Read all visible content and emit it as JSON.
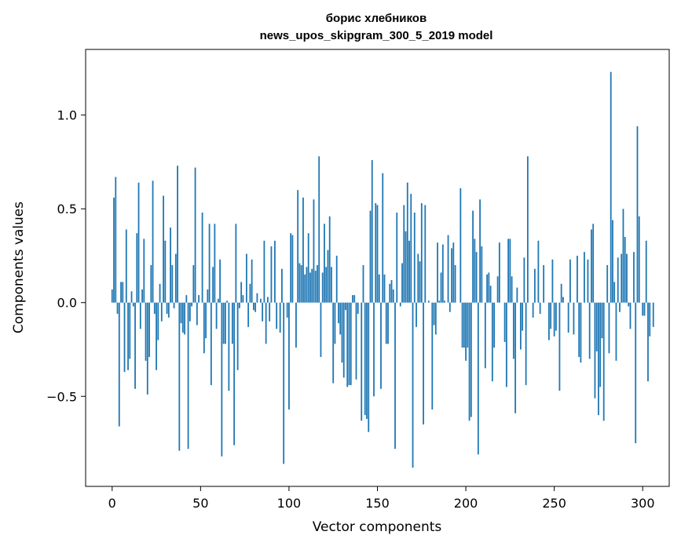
{
  "chart_data": {
    "type": "bar",
    "title": "борис хлебников",
    "subtitle": "news_upos_skipgram_300_5_2019 model",
    "xlabel": "Vector components",
    "ylabel": "Components values",
    "xlim": [
      -15,
      315
    ],
    "ylim": [
      -0.98,
      1.35
    ],
    "x_ticks": [
      0,
      50,
      100,
      150,
      200,
      250,
      300
    ],
    "y_ticks": [
      -0.5,
      0.0,
      0.5,
      1.0
    ],
    "y_tick_labels": [
      "−0.5",
      "0.0",
      "0.5",
      "1.0"
    ],
    "bar_color": "#1f77b4",
    "grid": false,
    "legend": "none",
    "values": [
      0.07,
      0.56,
      0.67,
      -0.06,
      -0.66,
      0.11,
      0.11,
      -0.37,
      0.39,
      -0.36,
      -0.3,
      0.06,
      -0.02,
      -0.46,
      0.37,
      0.64,
      -0.14,
      0.07,
      0.34,
      -0.31,
      -0.49,
      -0.29,
      0.2,
      0.65,
      -0.06,
      -0.36,
      -0.2,
      0.1,
      -0.1,
      0.57,
      0.33,
      -0.06,
      -0.08,
      0.4,
      0.2,
      -0.03,
      0.26,
      0.73,
      -0.79,
      -0.11,
      -0.16,
      -0.17,
      0.04,
      -0.78,
      -0.1,
      -0.02,
      0.2,
      0.72,
      -0.12,
      0.04,
      0.0,
      0.48,
      -0.27,
      -0.19,
      0.07,
      0.42,
      -0.44,
      0.19,
      0.42,
      -0.14,
      0.02,
      0.23,
      -0.82,
      -0.22,
      -0.22,
      0.01,
      -0.47,
      0.0,
      -0.22,
      -0.76,
      0.42,
      -0.36,
      -0.03,
      0.11,
      0.04,
      0.0,
      0.26,
      -0.13,
      0.1,
      0.23,
      -0.04,
      -0.05,
      0.05,
      0.0,
      0.02,
      -0.1,
      0.33,
      -0.22,
      0.03,
      -0.1,
      0.3,
      0.0,
      0.33,
      -0.14,
      0.0,
      -0.16,
      0.18,
      -0.86,
      0.0,
      -0.08,
      -0.57,
      0.37,
      0.36,
      0.0,
      -0.24,
      0.6,
      0.21,
      0.2,
      0.56,
      0.15,
      0.19,
      0.37,
      0.16,
      0.18,
      0.55,
      0.17,
      0.2,
      0.78,
      -0.29,
      0.16,
      0.42,
      0.19,
      0.28,
      0.46,
      0.19,
      -0.43,
      -0.22,
      0.25,
      -0.11,
      -0.17,
      -0.32,
      -0.4,
      -0.04,
      -0.45,
      -0.44,
      -0.44,
      0.04,
      0.04,
      -0.41,
      -0.06,
      0.0,
      -0.63,
      0.2,
      -0.6,
      -0.62,
      -0.69,
      0.49,
      0.76,
      -0.5,
      0.53,
      0.52,
      0.15,
      -0.46,
      0.69,
      0.15,
      -0.22,
      -0.22,
      0.1,
      0.12,
      0.07,
      -0.78,
      0.48,
      0.0,
      -0.02,
      0.21,
      0.52,
      0.38,
      0.64,
      0.33,
      0.58,
      -0.88,
      0.48,
      -0.13,
      0.26,
      0.22,
      0.53,
      -0.65,
      0.52,
      0.0,
      0.01,
      0.0,
      -0.57,
      -0.12,
      -0.17,
      0.32,
      0.01,
      0.16,
      0.31,
      0.01,
      0.0,
      0.36,
      -0.05,
      0.29,
      0.32,
      0.2,
      0.0,
      0.0,
      0.61,
      -0.24,
      -0.24,
      -0.31,
      -0.24,
      -0.63,
      -0.61,
      0.49,
      0.34,
      0.27,
      -0.81,
      0.55,
      0.3,
      0.0,
      -0.35,
      0.15,
      0.16,
      0.09,
      -0.42,
      -0.24,
      0.0,
      0.14,
      0.32,
      0.0,
      0.0,
      -0.21,
      -0.45,
      0.34,
      0.34,
      0.14,
      -0.3,
      -0.59,
      0.08,
      0.0,
      -0.25,
      -0.15,
      0.24,
      -0.44,
      0.78,
      0.0,
      0.0,
      -0.08,
      0.18,
      0.0,
      0.33,
      -0.06,
      0.0,
      0.2,
      0.0,
      0.0,
      -0.2,
      -0.14,
      0.23,
      -0.18,
      -0.15,
      0.0,
      -0.47,
      0.1,
      0.03,
      0.0,
      0.0,
      -0.16,
      0.23,
      0.0,
      -0.17,
      0.0,
      0.25,
      -0.29,
      -0.32,
      0.0,
      0.27,
      0.0,
      0.23,
      -0.3,
      0.39,
      0.42,
      -0.51,
      -0.26,
      -0.6,
      -0.45,
      -0.19,
      -0.63,
      0.0,
      0.2,
      -0.27,
      1.23,
      0.44,
      0.11,
      -0.31,
      0.24,
      -0.05,
      0.26,
      0.5,
      0.35,
      0.26,
      -0.02,
      -0.14,
      0.0,
      0.27,
      -0.75,
      0.94,
      0.46,
      0.0,
      -0.07,
      -0.07,
      0.33,
      -0.42,
      -0.18,
      0.0,
      -0.13
    ]
  }
}
